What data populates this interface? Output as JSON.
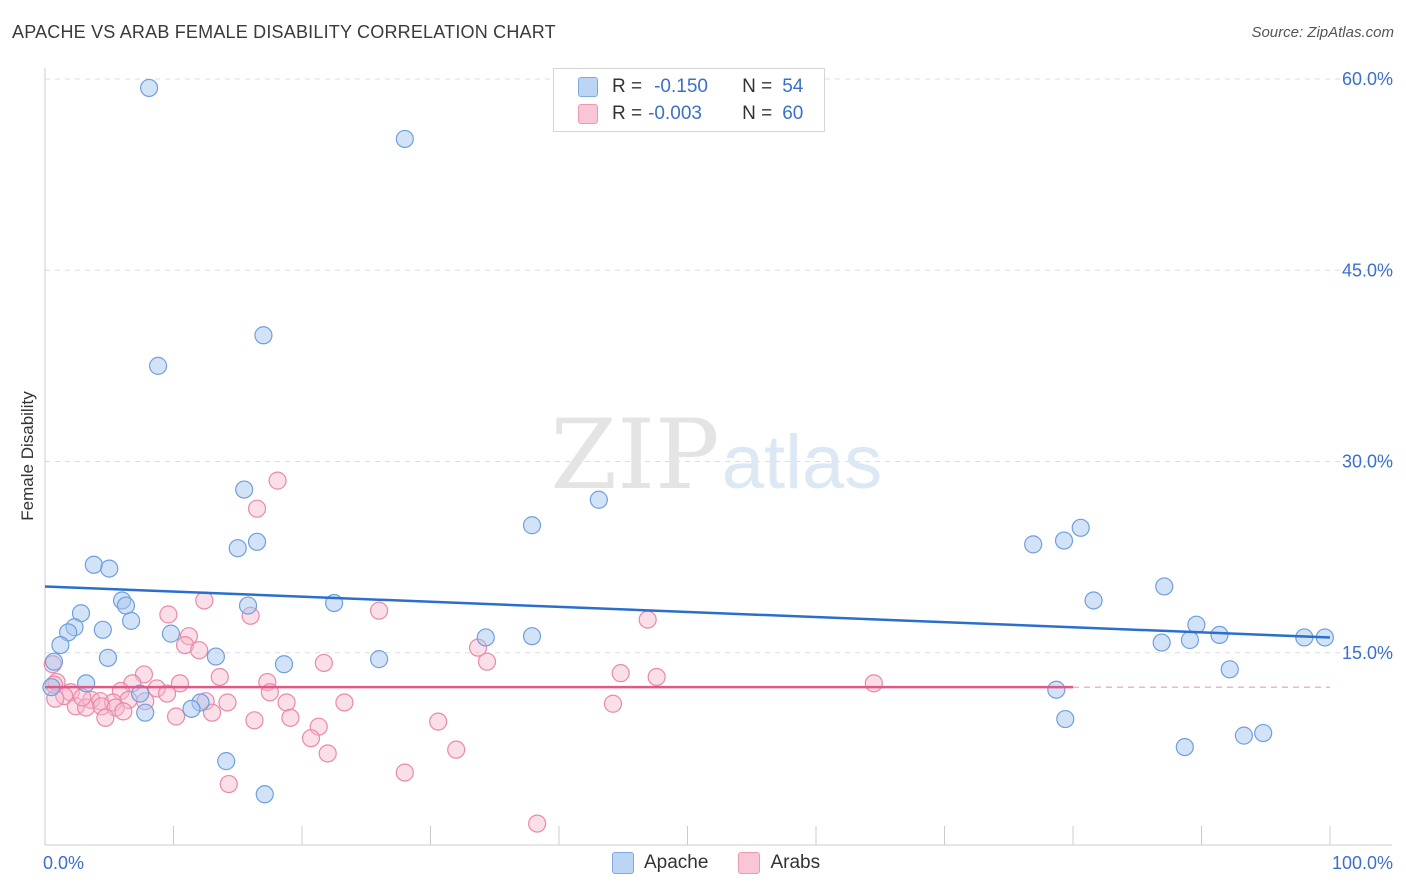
{
  "header": {
    "title": "APACHE VS ARAB FEMALE DISABILITY CORRELATION CHART",
    "source": "Source: ZipAtlas.com"
  },
  "watermark": {
    "zip": "ZIP",
    "atlas": "atlas"
  },
  "legend_top": [
    {
      "r_label": "R =",
      "r_value": "-0.150",
      "n_label": "N =",
      "n_value": "54"
    },
    {
      "r_label": "R =",
      "r_value": "-0.003",
      "n_label": "N =",
      "n_value": "60"
    }
  ],
  "legend_bottom": [
    "Apache",
    "Arabs"
  ],
  "colors": {
    "apache_fill": "#a8c8f0",
    "apache_stroke": "#6f9fdc",
    "apache_line": "#2a6fcb",
    "arabs_fill": "#f6b8cc",
    "arabs_stroke": "#e88aa8",
    "arabs_line": "#e0588a",
    "tick_label": "#3b6fce",
    "grid": "#dddddd"
  },
  "chart_data": {
    "type": "scatter",
    "title": "APACHE VS ARAB FEMALE DISABILITY CORRELATION CHART",
    "xlabel": "",
    "ylabel": "Female Disability",
    "xlim": [
      0,
      100
    ],
    "ylim": [
      0,
      60
    ],
    "x_tick_labels": [
      {
        "x": 0,
        "label": "0.0%"
      },
      {
        "x": 100,
        "label": "100.0%"
      }
    ],
    "y_ticks": [
      {
        "y": 15,
        "label": "15.0%"
      },
      {
        "y": 30,
        "label": "30.0%"
      },
      {
        "y": 45,
        "label": "45.0%"
      },
      {
        "y": 60,
        "label": "60.0%"
      }
    ],
    "grid": true,
    "legend_placement": "bottom-center",
    "series": [
      {
        "name": "Apache",
        "r": -0.15,
        "n": 54,
        "trend": {
          "x": [
            0,
            100
          ],
          "y": [
            20.2,
            16.2
          ]
        },
        "points": [
          [
            8.1,
            59.3
          ],
          [
            28.0,
            55.3
          ],
          [
            17.0,
            39.9
          ],
          [
            8.8,
            37.5
          ],
          [
            15.5,
            27.8
          ],
          [
            15.0,
            23.2
          ],
          [
            16.5,
            23.7
          ],
          [
            37.9,
            25.0
          ],
          [
            43.1,
            27.0
          ],
          [
            3.8,
            21.9
          ],
          [
            5.0,
            21.6
          ],
          [
            6.0,
            19.1
          ],
          [
            6.3,
            18.7
          ],
          [
            2.8,
            18.1
          ],
          [
            2.3,
            17.0
          ],
          [
            1.8,
            16.6
          ],
          [
            6.7,
            17.5
          ],
          [
            4.5,
            16.8
          ],
          [
            1.2,
            15.6
          ],
          [
            9.8,
            16.5
          ],
          [
            15.8,
            18.7
          ],
          [
            22.5,
            18.9
          ],
          [
            34.3,
            16.2
          ],
          [
            37.9,
            16.3
          ],
          [
            4.9,
            14.6
          ],
          [
            13.3,
            14.7
          ],
          [
            18.6,
            14.1
          ],
          [
            26.0,
            14.5
          ],
          [
            0.7,
            14.3
          ],
          [
            3.2,
            12.6
          ],
          [
            7.4,
            11.8
          ],
          [
            12.1,
            11.1
          ],
          [
            11.4,
            10.6
          ],
          [
            7.8,
            10.3
          ],
          [
            14.1,
            6.5
          ],
          [
            17.1,
            3.9
          ],
          [
            76.9,
            23.5
          ],
          [
            79.3,
            23.8
          ],
          [
            80.6,
            24.8
          ],
          [
            81.6,
            19.1
          ],
          [
            87.1,
            20.2
          ],
          [
            89.6,
            17.2
          ],
          [
            86.9,
            15.8
          ],
          [
            89.1,
            16.0
          ],
          [
            91.4,
            16.4
          ],
          [
            98.0,
            16.2
          ],
          [
            99.6,
            16.2
          ],
          [
            92.2,
            13.7
          ],
          [
            78.7,
            12.1
          ],
          [
            79.4,
            9.8
          ],
          [
            88.7,
            7.6
          ],
          [
            93.3,
            8.5
          ],
          [
            94.8,
            8.7
          ],
          [
            0.5,
            12.3
          ]
        ]
      },
      {
        "name": "Arabs",
        "r": -0.003,
        "n": 60,
        "trend": {
          "x": [
            0,
            80
          ],
          "y": [
            12.3,
            12.3
          ]
        },
        "points": [
          [
            18.1,
            28.5
          ],
          [
            16.5,
            26.3
          ],
          [
            12.4,
            19.1
          ],
          [
            9.6,
            18.0
          ],
          [
            16.0,
            17.9
          ],
          [
            26.0,
            18.3
          ],
          [
            46.9,
            17.6
          ],
          [
            11.2,
            16.3
          ],
          [
            10.9,
            15.6
          ],
          [
            12.0,
            15.2
          ],
          [
            33.7,
            15.4
          ],
          [
            34.4,
            14.3
          ],
          [
            21.7,
            14.2
          ],
          [
            0.6,
            14.1
          ],
          [
            7.7,
            13.3
          ],
          [
            13.6,
            13.1
          ],
          [
            44.8,
            13.4
          ],
          [
            47.6,
            13.1
          ],
          [
            0.9,
            12.7
          ],
          [
            6.8,
            12.6
          ],
          [
            10.5,
            12.6
          ],
          [
            17.3,
            12.7
          ],
          [
            64.5,
            12.6
          ],
          [
            5.9,
            12.0
          ],
          [
            8.7,
            12.2
          ],
          [
            9.5,
            11.8
          ],
          [
            17.5,
            11.9
          ],
          [
            2.0,
            11.9
          ],
          [
            1.5,
            11.6
          ],
          [
            0.8,
            11.4
          ],
          [
            3.6,
            11.3
          ],
          [
            4.3,
            11.2
          ],
          [
            5.3,
            11.1
          ],
          [
            6.5,
            11.3
          ],
          [
            7.8,
            11.2
          ],
          [
            12.5,
            11.2
          ],
          [
            14.2,
            11.1
          ],
          [
            18.8,
            11.1
          ],
          [
            23.3,
            11.1
          ],
          [
            44.2,
            11.0
          ],
          [
            2.4,
            10.8
          ],
          [
            3.2,
            10.7
          ],
          [
            4.4,
            10.8
          ],
          [
            5.5,
            10.7
          ],
          [
            6.1,
            10.4
          ],
          [
            10.2,
            10.0
          ],
          [
            4.7,
            9.9
          ],
          [
            16.3,
            9.7
          ],
          [
            19.1,
            9.9
          ],
          [
            21.3,
            9.2
          ],
          [
            30.6,
            9.6
          ],
          [
            20.7,
            8.3
          ],
          [
            22.0,
            7.1
          ],
          [
            32.0,
            7.4
          ],
          [
            28.0,
            5.6
          ],
          [
            14.3,
            4.7
          ],
          [
            38.3,
            1.6
          ],
          [
            0.7,
            12.5
          ],
          [
            2.9,
            11.5
          ],
          [
            13.0,
            10.3
          ]
        ]
      }
    ]
  }
}
